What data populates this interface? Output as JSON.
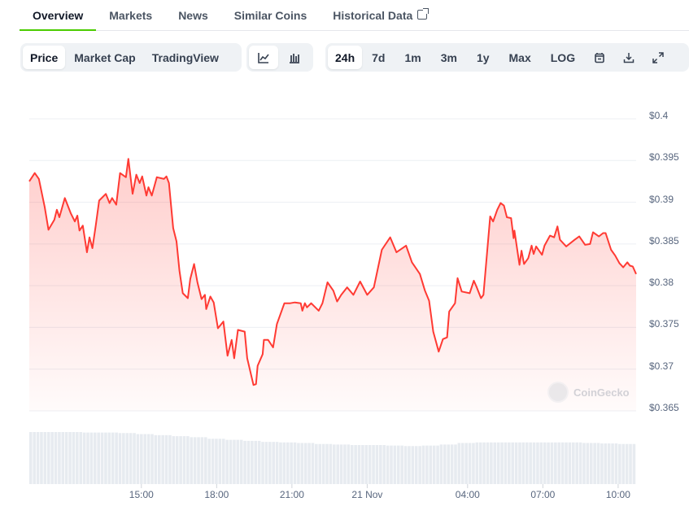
{
  "tabs": [
    {
      "label": "Overview",
      "active": true
    },
    {
      "label": "Markets"
    },
    {
      "label": "News"
    },
    {
      "label": "Similar Coins"
    },
    {
      "label": "Historical Data",
      "icon": "external-link-icon"
    }
  ],
  "toolbar": {
    "chart_kind": [
      {
        "label": "Price",
        "active": true
      },
      {
        "label": "Market Cap"
      },
      {
        "label": "TradingView"
      }
    ],
    "chart_style": [
      {
        "icon": "line-chart-icon",
        "active": true
      },
      {
        "icon": "candlestick-icon"
      }
    ],
    "ranges": [
      {
        "label": "24h",
        "active": true
      },
      {
        "label": "7d"
      },
      {
        "label": "1m"
      },
      {
        "label": "3m"
      },
      {
        "label": "1y"
      },
      {
        "label": "Max"
      },
      {
        "label": "LOG"
      }
    ],
    "actions": [
      {
        "icon": "calendar-icon"
      },
      {
        "icon": "download-icon"
      },
      {
        "icon": "fullscreen-icon"
      }
    ]
  },
  "watermark": "CoinGecko",
  "colors": {
    "line": "#ff3a33",
    "accent": "#4bcc00",
    "volume": "#e7ebf0"
  },
  "chart_data": {
    "type": "area",
    "title": "",
    "xlabel": "",
    "ylabel": "",
    "ylim": [
      0.365,
      0.4
    ],
    "yticks": [
      "$0.4",
      "$0.395",
      "$0.39",
      "$0.385",
      "$0.38",
      "$0.375",
      "$0.37",
      "$0.365"
    ],
    "ytick_values": [
      0.4,
      0.395,
      0.39,
      0.385,
      0.38,
      0.375,
      0.37,
      0.365
    ],
    "xticks": [
      "15:00",
      "18:00",
      "21:00",
      "21 Nov",
      "04:00",
      "07:00",
      "10:00"
    ],
    "grid": true,
    "legend": "none",
    "series": [
      {
        "x": [
          "10:32",
          "10:45",
          "10:55",
          "11:09",
          "11:18",
          "11:32",
          "11:38",
          "11:44",
          "11:57",
          "12:11",
          "12:21",
          "12:27",
          "12:32",
          "12:40",
          "12:50",
          "12:56",
          "13:03",
          "13:11",
          "13:19",
          "13:35",
          "13:44",
          "13:50",
          "14:00",
          "14:09",
          "14:23",
          "14:29",
          "14:39",
          "14:48",
          "14:56",
          "15:02",
          "15:12",
          "15:17",
          "15:25",
          "15:37",
          "15:54",
          "16:00",
          "16:06",
          "16:16",
          "16:24",
          "16:31",
          "16:39",
          "16:51",
          "16:57",
          "17:06",
          "17:14",
          "17:24",
          "17:32",
          "17:35",
          "17:45",
          "17:53",
          "18:03",
          "18:16",
          "18:26",
          "18:36",
          "18:42",
          "18:51",
          "19:07",
          "19:13",
          "19:28",
          "19:34",
          "19:38",
          "19:50",
          "19:53",
          "20:03",
          "20:15",
          "20:24",
          "20:42",
          "20:56",
          "21:07",
          "21:21",
          "21:25",
          "21:31",
          "21:36",
          "21:46",
          "22:04",
          "22:13",
          "22:25",
          "22:39",
          "22:48",
          "22:58",
          "23:12",
          "23:27",
          "23:43",
          "00:00",
          "00:16",
          "00:35",
          "00:55",
          "01:10",
          "01:33",
          "01:47",
          "02:06",
          "02:18",
          "02:28",
          "02:38",
          "02:51",
          "03:01",
          "03:11",
          "03:16",
          "03:30",
          "03:36",
          "03:46",
          "04:05",
          "04:15",
          "04:22",
          "04:32",
          "04:38",
          "04:54",
          "05:01",
          "05:11",
          "05:19",
          "05:27",
          "05:34",
          "05:44",
          "05:50",
          "05:52",
          "06:04",
          "06:09",
          "06:15",
          "06:25",
          "06:33",
          "06:38",
          "06:44",
          "06:58",
          "07:04",
          "07:17",
          "07:27",
          "07:35",
          "07:41",
          "07:56",
          "08:16",
          "08:27",
          "08:41",
          "08:53",
          "09:00",
          "09:14",
          "09:24",
          "09:30",
          "09:43",
          "09:53",
          "10:03",
          "10:12",
          "10:22",
          "10:28",
          "10:35",
          "10:43"
        ],
        "values": [
          0.3925,
          0.3935,
          0.3928,
          0.3894,
          0.3867,
          0.3879,
          0.3891,
          0.3882,
          0.3905,
          0.3887,
          0.3877,
          0.3884,
          0.3866,
          0.3872,
          0.384,
          0.3858,
          0.3845,
          0.3872,
          0.3902,
          0.391,
          0.3899,
          0.3905,
          0.3897,
          0.3935,
          0.393,
          0.3952,
          0.391,
          0.3933,
          0.3923,
          0.3931,
          0.3908,
          0.3918,
          0.3908,
          0.393,
          0.3928,
          0.3931,
          0.3923,
          0.3869,
          0.3853,
          0.3818,
          0.3791,
          0.3785,
          0.3808,
          0.3826,
          0.3804,
          0.3784,
          0.3789,
          0.3772,
          0.3787,
          0.378,
          0.3749,
          0.3757,
          0.3716,
          0.3735,
          0.3713,
          0.3747,
          0.3745,
          0.3713,
          0.3681,
          0.3682,
          0.3704,
          0.3718,
          0.3735,
          0.3735,
          0.3726,
          0.3754,
          0.3779,
          0.3779,
          0.378,
          0.3779,
          0.377,
          0.3779,
          0.3774,
          0.3779,
          0.377,
          0.3779,
          0.3804,
          0.3794,
          0.3781,
          0.3789,
          0.3798,
          0.3789,
          0.3805,
          0.3789,
          0.3798,
          0.3843,
          0.3858,
          0.384,
          0.3848,
          0.3828,
          0.3814,
          0.3794,
          0.3782,
          0.3745,
          0.3721,
          0.3736,
          0.3738,
          0.3769,
          0.3779,
          0.3809,
          0.3793,
          0.3791,
          0.3806,
          0.3798,
          0.3785,
          0.3789,
          0.3883,
          0.3877,
          0.3891,
          0.3899,
          0.3896,
          0.3882,
          0.3881,
          0.3857,
          0.3866,
          0.3825,
          0.3842,
          0.3826,
          0.3833,
          0.3848,
          0.3838,
          0.3847,
          0.3837,
          0.3848,
          0.386,
          0.3858,
          0.3871,
          0.3855,
          0.3847,
          0.3855,
          0.3859,
          0.3849,
          0.385,
          0.3864,
          0.3859,
          0.3863,
          0.3863,
          0.3843,
          0.3836,
          0.3827,
          0.3822,
          0.3828,
          0.3824,
          0.3823,
          0.3814
        ]
      }
    ],
    "volume_relative": [
      1.0,
      1.0,
      1.0,
      0.99,
      0.99,
      0.98,
      0.96,
      0.94,
      0.92,
      0.9,
      0.87,
      0.85,
      0.83,
      0.81,
      0.8,
      0.79,
      0.77,
      0.76,
      0.75,
      0.75,
      0.74,
      0.73,
      0.74,
      0.76,
      0.79,
      0.8,
      0.8,
      0.8,
      0.8,
      0.8,
      0.8,
      0.79,
      0.78,
      0.77
    ]
  }
}
